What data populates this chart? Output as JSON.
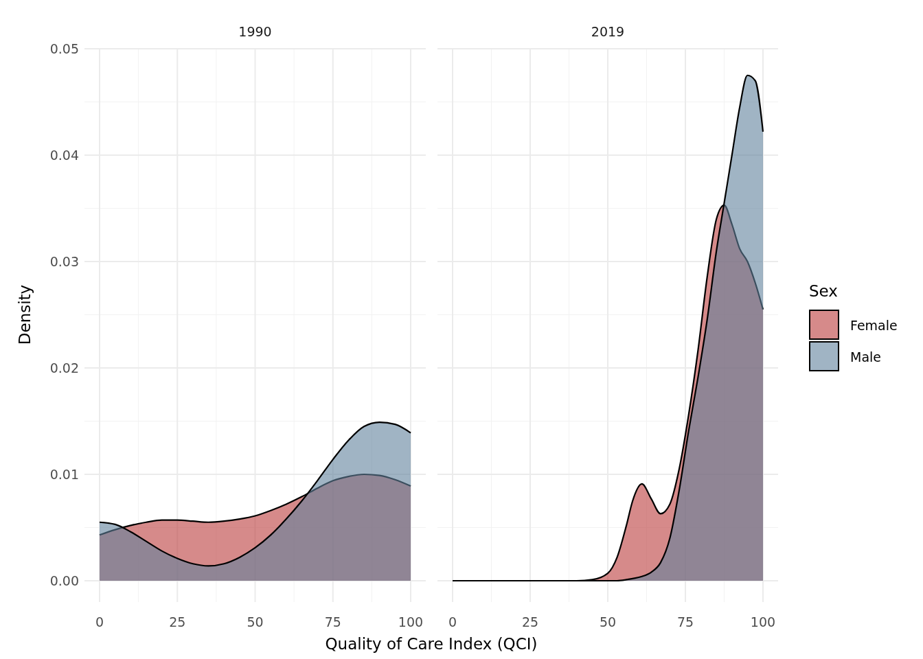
{
  "chart_data": [
    {
      "type": "area",
      "title": "1990",
      "xlabel": "Quality of Care Index (QCI)",
      "ylabel": "Density",
      "xlim": [
        0,
        100
      ],
      "xticks": [
        0,
        25,
        50,
        75,
        100
      ],
      "ylim": [
        0,
        0.05
      ],
      "yticks": [
        {
          "value": 0,
          "label": "0.00"
        },
        {
          "value": 0.01,
          "label": "0.01"
        },
        {
          "value": 0.02,
          "label": "0.02"
        },
        {
          "value": 0.03,
          "label": "0.03"
        },
        {
          "value": 0.04,
          "label": "0.04"
        },
        {
          "value": 0.05,
          "label": "0.05"
        }
      ],
      "grid": true,
      "x": [
        0,
        5,
        10,
        15,
        20,
        25,
        30,
        35,
        40,
        45,
        50,
        55,
        60,
        65,
        70,
        75,
        80,
        85,
        90,
        95,
        100
      ],
      "series": [
        {
          "color": "#bb3c3c",
          "values": [
            0.0043,
            0.0048,
            0.0052,
            0.0055,
            0.0057,
            0.0057,
            0.0056,
            0.0055,
            0.0056,
            0.0058,
            0.0061,
            0.0066,
            0.0072,
            0.0079,
            0.0087,
            0.0094,
            0.0098,
            0.01,
            0.0099,
            0.0095,
            0.0089
          ]
        },
        {
          "color": "#61829d",
          "values": [
            0.0055,
            0.0053,
            0.0046,
            0.0037,
            0.0028,
            0.0021,
            0.0016,
            0.0014,
            0.0016,
            0.0022,
            0.0031,
            0.0043,
            0.0058,
            0.0075,
            0.0094,
            0.0114,
            0.0132,
            0.0145,
            0.0149,
            0.0147,
            0.0139
          ]
        }
      ]
    },
    {
      "type": "area",
      "title": "2019",
      "xlim": [
        0,
        100
      ],
      "xticks": [
        0,
        25,
        50,
        75,
        100
      ],
      "ylim": [
        0,
        0.05
      ],
      "tick_labels": "x",
      "grid": true,
      "legend": "right",
      "legend_title": "Sex",
      "x": [
        0,
        40,
        45,
        50,
        53,
        56,
        58,
        61,
        64,
        67,
        70,
        73,
        76,
        79,
        82,
        85,
        87.5,
        90,
        92.5,
        95,
        97.5,
        100
      ],
      "series": [
        {
          "name": "Female",
          "color": "#bb3c3c",
          "values": [
            0,
            0,
            0.0001,
            0.0007,
            0.0022,
            0.0052,
            0.0075,
            0.0091,
            0.0077,
            0.0063,
            0.0072,
            0.0105,
            0.0155,
            0.0215,
            0.0285,
            0.034,
            0.0353,
            0.0335,
            0.0312,
            0.03,
            0.028,
            0.0255
          ]
        },
        {
          "name": "Male",
          "color": "#61829d",
          "values": [
            0,
            0,
            0,
            0,
            0,
            0.0001,
            0.0002,
            0.0004,
            0.0008,
            0.0017,
            0.004,
            0.0085,
            0.014,
            0.019,
            0.0245,
            0.031,
            0.0355,
            0.04,
            0.0445,
            0.0475,
            0.047,
            0.0422
          ]
        }
      ]
    }
  ]
}
